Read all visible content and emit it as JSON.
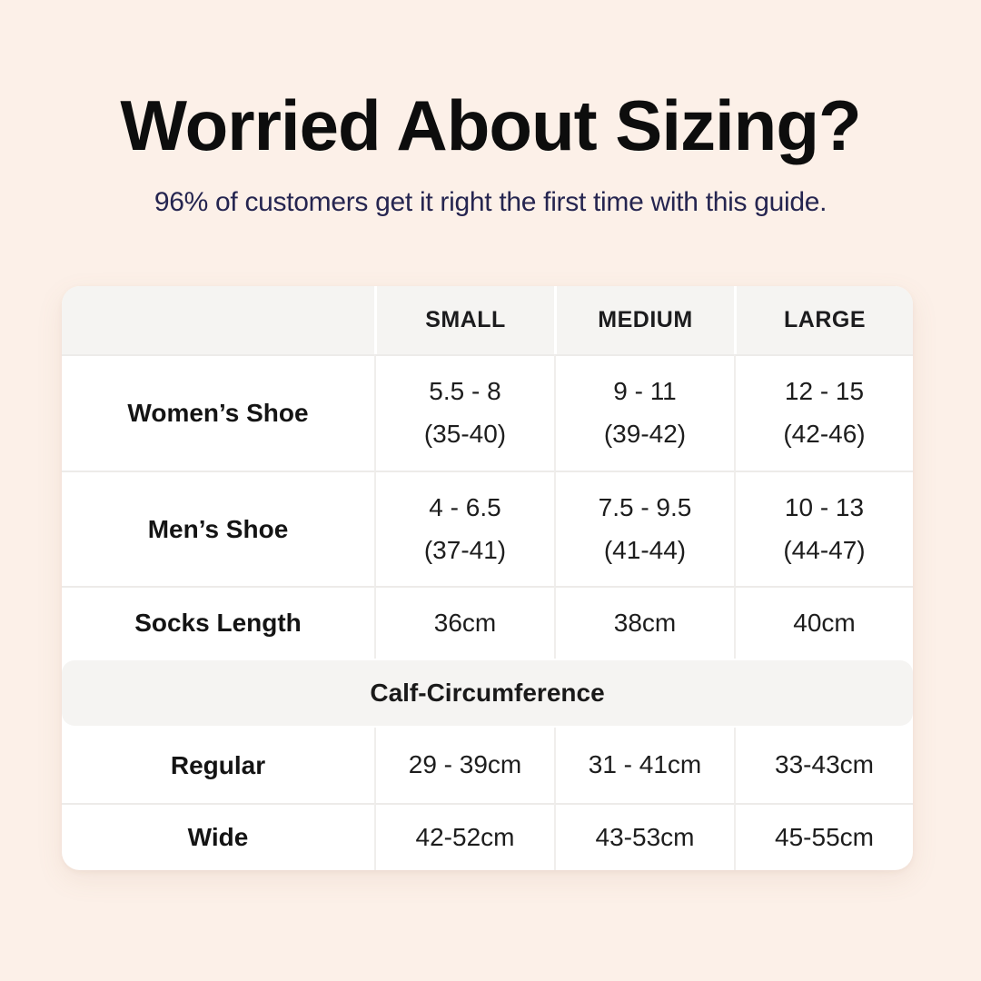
{
  "page": {
    "background_color": "#fcf0e8",
    "accent_navy": "#252550",
    "card_color": "#ffffff",
    "band_color": "#f5f4f2"
  },
  "header": {
    "title": "Worried About Sizing?",
    "subtitle": "96% of customers get it right the first time with this guide."
  },
  "table": {
    "columns": [
      "SMALL",
      "MEDIUM",
      "LARGE"
    ],
    "rows": [
      {
        "label": "Women’s Shoe",
        "values": [
          [
            "5.5 - 8",
            "(35-40)"
          ],
          [
            "9 - 11",
            "(39-42)"
          ],
          [
            "12 - 15",
            "(42-46)"
          ]
        ]
      },
      {
        "label": "Men’s Shoe",
        "values": [
          [
            "4 - 6.5",
            "(37-41)"
          ],
          [
            "7.5 - 9.5",
            "(41-44)"
          ],
          [
            "10 - 13",
            "(44-47)"
          ]
        ]
      },
      {
        "label": "Socks Length",
        "values": [
          [
            "36cm"
          ],
          [
            "38cm"
          ],
          [
            "40cm"
          ]
        ]
      }
    ],
    "section_header": "Calf-Circumference",
    "section_rows": [
      {
        "label": "Regular",
        "values": [
          [
            "29 - 39cm"
          ],
          [
            "31 - 41cm"
          ],
          [
            "33-43cm"
          ]
        ]
      },
      {
        "label": "Wide",
        "values": [
          [
            "42-52cm"
          ],
          [
            "43-53cm"
          ],
          [
            "45-55cm"
          ]
        ]
      }
    ]
  }
}
